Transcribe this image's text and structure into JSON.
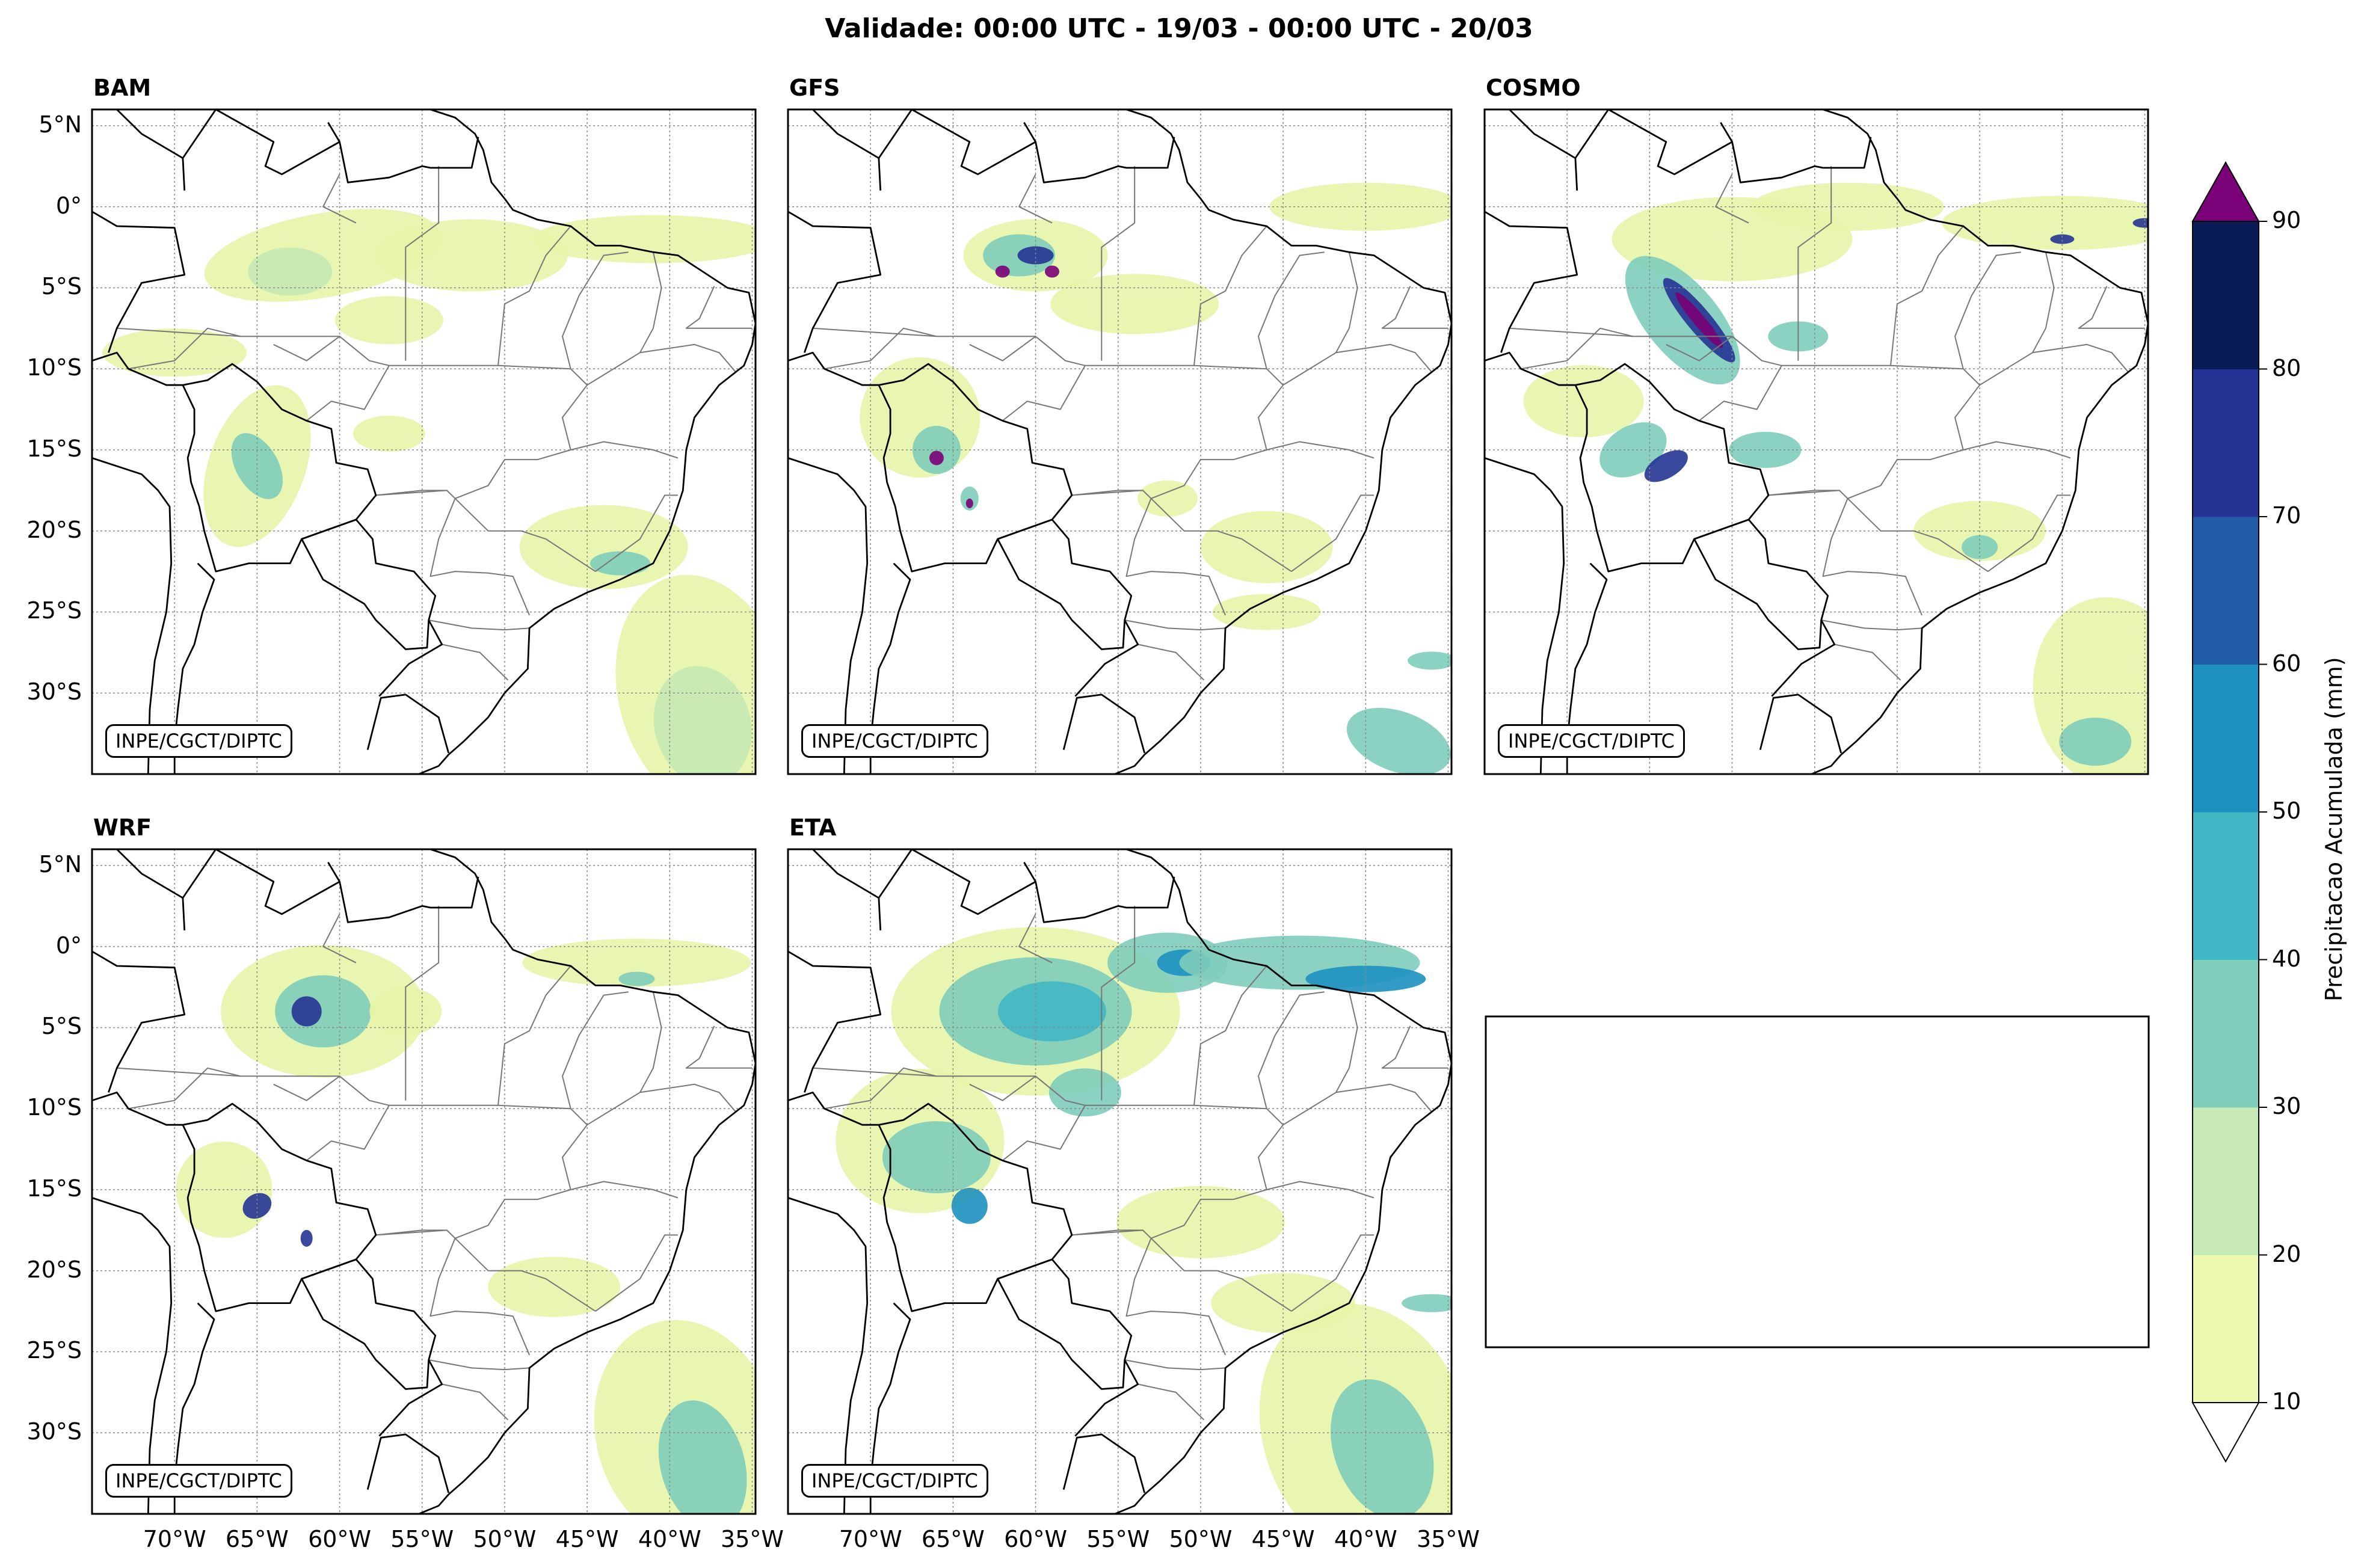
{
  "figure": {
    "title": "Validade: 00:00 UTC - 19/03 - 00:00 UTC - 20/03",
    "credit": "INPE/CGCT/DIPTC"
  },
  "panels": [
    {
      "name": "BAM"
    },
    {
      "name": "GFS"
    },
    {
      "name": "COSMO"
    },
    {
      "name": "WRF"
    },
    {
      "name": "ETA"
    }
  ],
  "axes": {
    "lat_labels": [
      "5°N",
      "0°",
      "5°S",
      "10°S",
      "15°S",
      "20°S",
      "25°S",
      "30°S"
    ],
    "lon_labels": [
      "70°W",
      "65°W",
      "60°W",
      "55°W",
      "50°W",
      "45°W",
      "40°W",
      "35°W"
    ]
  },
  "colorbar": {
    "label": "Precipitacao Acumulada (mm)",
    "ticks": [
      "10",
      "20",
      "30",
      "40",
      "50",
      "60",
      "70",
      "80",
      "90"
    ],
    "colors": [
      "#edf8b1",
      "#c7e9b4",
      "#7fcdbb",
      "#41b6c4",
      "#1d91c0",
      "#225ea8",
      "#253494",
      "#081d58"
    ],
    "over_color": "#7a0177",
    "under_color": "#ffffff"
  },
  "colors": {
    "light": "#e6f5a8",
    "green": "#c7e9b4",
    "teal": "#7fcdbb",
    "cyan": "#41b6c4",
    "blue": "#1d91c0",
    "navy": "#253494",
    "magenta": "#7a0177"
  }
}
